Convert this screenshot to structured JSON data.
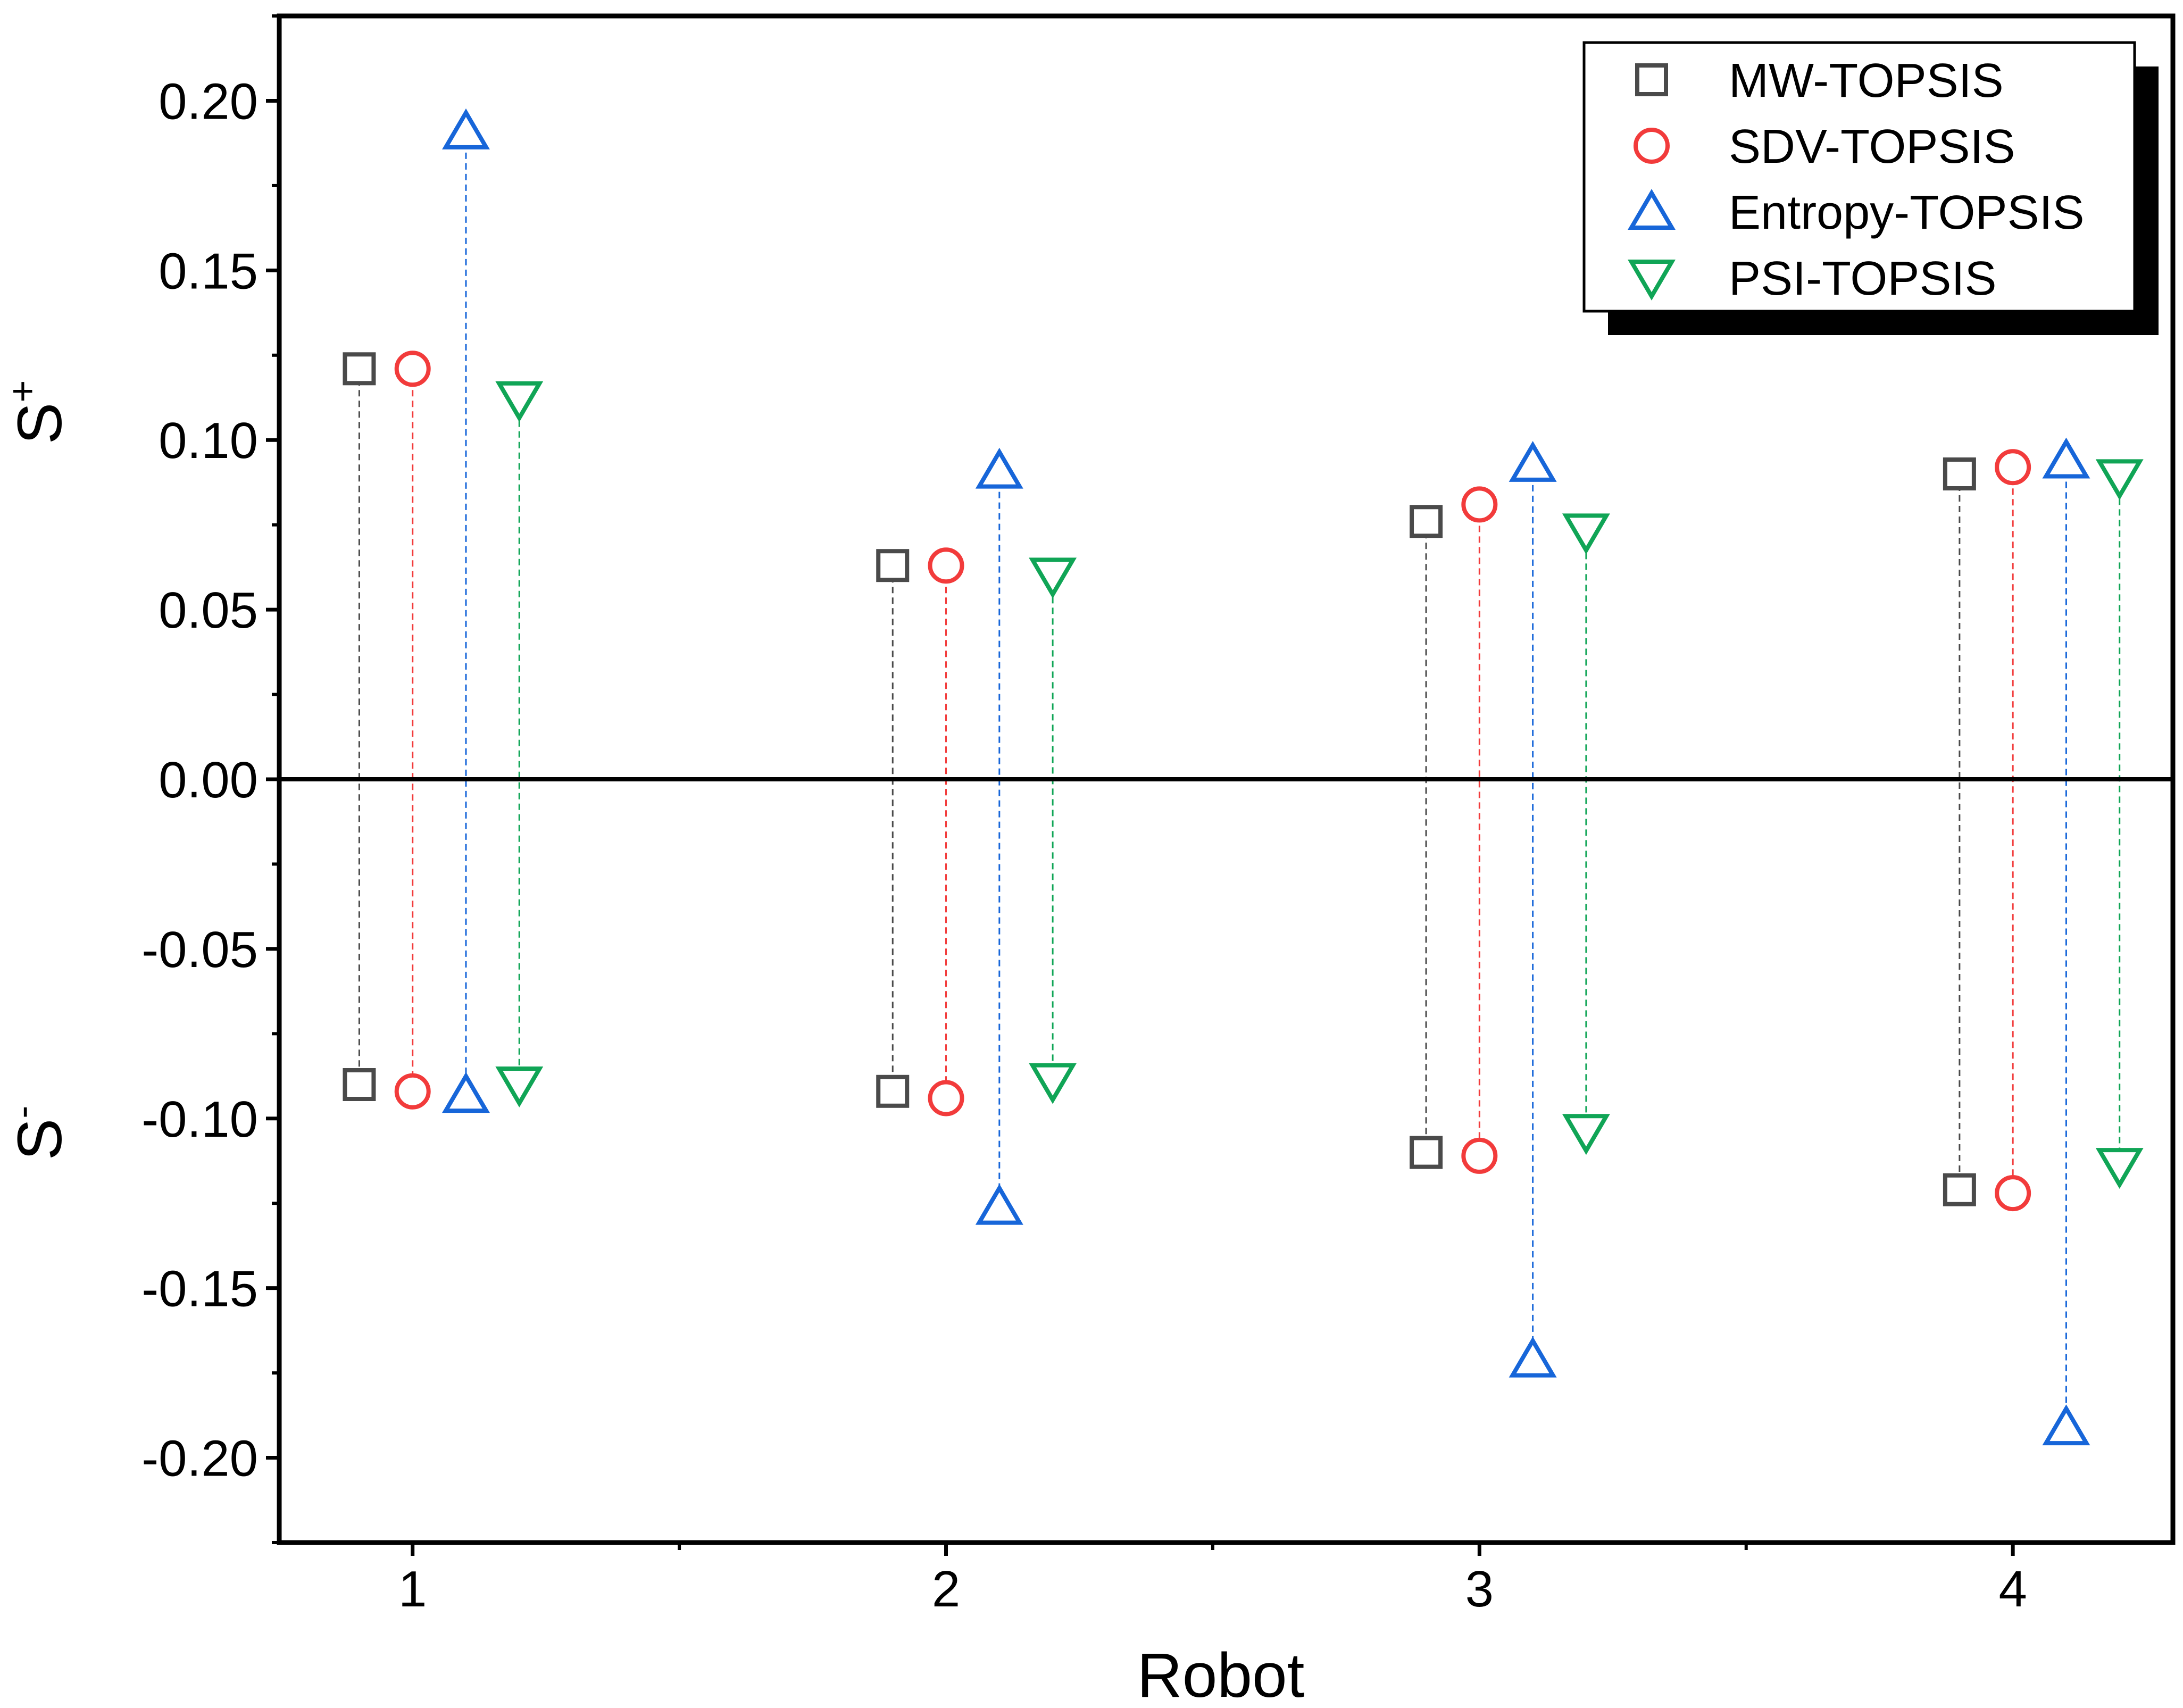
{
  "chart_data": {
    "type": "scatter",
    "title": "",
    "xlabel": "Robot",
    "ylabel_top": "S",
    "ylabel_top_sup": "+",
    "ylabel_bottom": "S",
    "ylabel_bottom_sup": "-",
    "categories": [
      "1",
      "2",
      "3",
      "4"
    ],
    "xlim": [
      0.75,
      4.3
    ],
    "ylim": [
      -0.225,
      0.225
    ],
    "yticks": [
      0.2,
      0.15,
      0.1,
      0.05,
      0.0,
      -0.05,
      -0.1,
      -0.15,
      -0.2
    ],
    "ytick_labels": [
      "0.20",
      "0.15",
      "0.10",
      "0.05",
      "0.00",
      "-0.05",
      "-0.10",
      "-0.15",
      "-0.20"
    ],
    "grid": false,
    "zero_line": true,
    "legend_position": "top-right",
    "series": [
      {
        "name": "MW-TOPSIS",
        "marker": "square",
        "color": "#4a4a4a",
        "offset": -0.1,
        "s_plus": [
          0.121,
          0.063,
          0.076,
          0.09
        ],
        "s_minus": [
          -0.09,
          -0.092,
          -0.11,
          -0.121
        ]
      },
      {
        "name": "SDV-TOPSIS",
        "marker": "circle",
        "color": "#f23b3b",
        "offset": 0.0,
        "s_plus": [
          0.121,
          0.063,
          0.081,
          0.092
        ],
        "s_minus": [
          -0.092,
          -0.094,
          -0.111,
          -0.122
        ]
      },
      {
        "name": "Entropy-TOPSIS",
        "marker": "triangle-up",
        "color": "#1766d9",
        "offset": 0.1,
        "s_plus": [
          0.191,
          0.091,
          0.093,
          0.094
        ],
        "s_minus": [
          -0.093,
          -0.126,
          -0.171,
          -0.191
        ]
      },
      {
        "name": "PSI-TOPSIS",
        "marker": "triangle-down",
        "color": "#10a556",
        "offset": 0.2,
        "s_plus": [
          0.112,
          0.06,
          0.073,
          0.089
        ],
        "s_minus": [
          -0.09,
          -0.089,
          -0.104,
          -0.114
        ]
      }
    ]
  }
}
